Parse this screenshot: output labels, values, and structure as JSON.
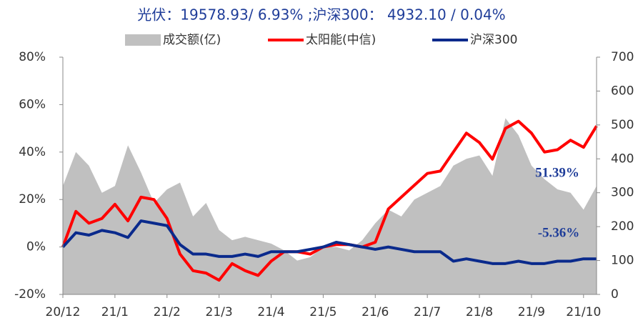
{
  "chart_data": {
    "type": "line",
    "title": "光伏：19578.93/ 6.93% ;沪深300： 4932.10 / 0.04%",
    "categories": [
      "20/12",
      null,
      null,
      null,
      "21/1",
      null,
      null,
      null,
      "21/2",
      null,
      null,
      null,
      "21/3",
      null,
      null,
      null,
      "21/4",
      null,
      null,
      null,
      "21/5",
      null,
      null,
      null,
      "21/6",
      null,
      null,
      null,
      "21/7",
      null,
      null,
      null,
      "21/8",
      null,
      null,
      null,
      "21/9",
      null,
      null,
      null,
      "21/10",
      null
    ],
    "series": [
      {
        "name": "成交额(亿)",
        "type": "area",
        "axis": "y2",
        "color": "#c0c0c0",
        "values": [
          320,
          420,
          380,
          300,
          320,
          440,
          360,
          270,
          310,
          330,
          230,
          270,
          190,
          160,
          170,
          160,
          150,
          130,
          100,
          110,
          140,
          140,
          130,
          160,
          210,
          250,
          230,
          280,
          300,
          320,
          380,
          400,
          410,
          350,
          520,
          470,
          380,
          340,
          310,
          300,
          250,
          320
        ]
      },
      {
        "name": "太阳能(中信)",
        "color": "#ff0000",
        "values": [
          0,
          15,
          10,
          12,
          18,
          11,
          21,
          20,
          12,
          -3,
          -10,
          -11,
          -14,
          -7,
          -10,
          -12,
          -6,
          -2,
          -2,
          -3,
          0,
          1,
          1,
          0,
          2,
          16,
          21,
          26,
          31,
          32,
          40,
          48,
          44,
          37,
          50,
          53,
          48,
          40,
          41,
          45,
          42,
          51
        ]
      },
      {
        "name": "沪深300",
        "color": "#0a2a8c",
        "values": [
          0,
          6,
          5,
          7,
          6,
          4,
          11,
          10,
          9,
          1,
          -3,
          -3,
          -4,
          -4,
          -3,
          -4,
          -2,
          -2,
          -2,
          -1,
          0,
          2,
          1,
          0,
          -1,
          0,
          -1,
          -2,
          -2,
          -2,
          -6,
          -5,
          -6,
          -7,
          -7,
          -6,
          -7,
          -7,
          -6,
          -6,
          -5,
          -5
        ]
      }
    ],
    "ylim": [
      -20,
      80
    ],
    "yticks": [
      {
        "value": -20,
        "label": "-20%"
      },
      {
        "value": 0,
        "label": "0%"
      },
      {
        "value": 20,
        "label": "20%"
      },
      {
        "value": 40,
        "label": "40%"
      },
      {
        "value": 60,
        "label": "60%"
      },
      {
        "value": 80,
        "label": "80%"
      }
    ],
    "y2lim": [
      0,
      700
    ],
    "y2ticks": [
      0,
      100,
      200,
      300,
      400,
      500,
      600,
      700
    ],
    "annotations": [
      "51.39%",
      "-5.36%"
    ]
  }
}
